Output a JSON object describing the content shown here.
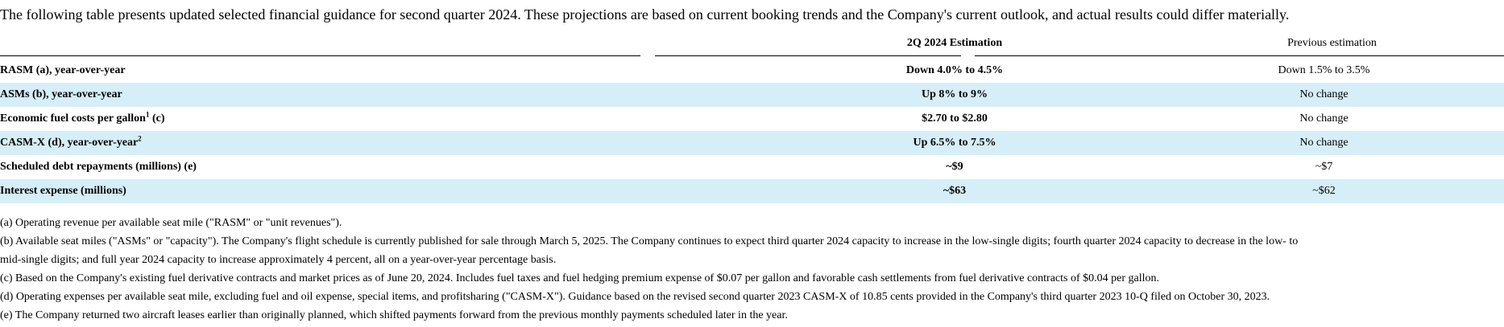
{
  "intro": "The following table presents updated selected financial guidance for second quarter 2024. These projections are based on current booking trends and the Company's current outlook, and actual results could differ materially.",
  "headers": {
    "estimation": "2Q 2024 Estimation",
    "previous": "Previous estimation"
  },
  "rows": [
    {
      "label": "RASM (a), year-over-year",
      "sup": "",
      "suffix": "",
      "estimation": "Down 4.0% to 4.5%",
      "previous": "Down 1.5% to 3.5%"
    },
    {
      "label": "ASMs (b), year-over-year",
      "sup": "",
      "suffix": "",
      "estimation": "Up 8% to 9%",
      "previous": "No change"
    },
    {
      "label": "Economic fuel costs per gallon",
      "sup": "1",
      "suffix": " (c)",
      "estimation": "$2.70 to $2.80",
      "previous": "No change"
    },
    {
      "label": "CASM-X (d), year-over-year",
      "sup": "2",
      "suffix": "",
      "estimation": "Up 6.5% to 7.5%",
      "previous": "No change"
    },
    {
      "label": "Scheduled debt repayments (millions) (e)",
      "sup": "",
      "suffix": "",
      "estimation": "~$9",
      "previous": "~$7"
    },
    {
      "label": "Interest expense (millions)",
      "sup": "",
      "suffix": "",
      "estimation": "~$63",
      "previous": "~$62"
    }
  ],
  "footnotes": [
    "(a) Operating revenue per available seat mile (\"RASM\" or \"unit revenues\").",
    "(b) Available seat miles (\"ASMs\" or \"capacity\"). The Company's flight schedule is currently published for sale through March 5, 2025. The Company continues to expect third quarter 2024 capacity to increase in the low-single digits; fourth quarter 2024 capacity to decrease in the low- to",
    "mid-single digits; and full year 2024 capacity to increase approximately 4 percent, all on a year-over-year percentage basis.",
    "(c) Based on the Company's existing fuel derivative contracts and market prices as of June 20, 2024. Includes fuel taxes and fuel hedging premium expense of $0.07 per gallon and favorable cash settlements from fuel derivative contracts of $0.04 per gallon.",
    "(d) Operating expenses per available seat mile, excluding fuel and oil expense, special items, and profitsharing (\"CASM-X\"). Guidance based on the revised second quarter 2023 CASM-X of 10.85 cents provided in the Company's third quarter 2023 10-Q filed on October 30, 2023.",
    "(e) The Company returned two aircraft leases earlier than originally planned, which shifted payments forward from the previous monthly payments scheduled later in the year."
  ]
}
